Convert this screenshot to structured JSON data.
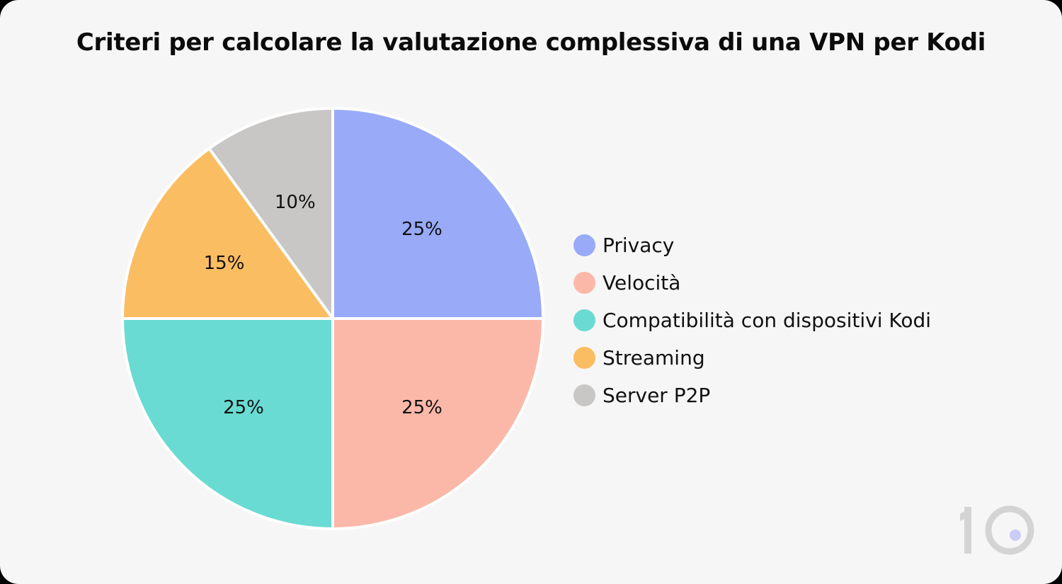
{
  "chart_data": {
    "type": "pie",
    "title": "Criteri per calcolare la valutazione complessiva di una VPN per Kodi",
    "legend_position": "right",
    "slices": [
      {
        "label": "Privacy",
        "value": 25,
        "display": "25%",
        "color": "#98aaf8"
      },
      {
        "label": "Velocità",
        "value": 25,
        "display": "25%",
        "color": "#fbb8a8"
      },
      {
        "label": "Compatibilità con dispositivi Kodi",
        "value": 25,
        "display": "25%",
        "color": "#69dbd2"
      },
      {
        "label": "Streaming",
        "value": 15,
        "display": "15%",
        "color": "#fbbd62"
      },
      {
        "label": "Server P2P",
        "value": 10,
        "display": "10%",
        "color": "#c8c7c5"
      }
    ]
  },
  "logo": {
    "icon": "ten-logo-icon",
    "text": "10",
    "dot_color": "#c9ccf3"
  }
}
